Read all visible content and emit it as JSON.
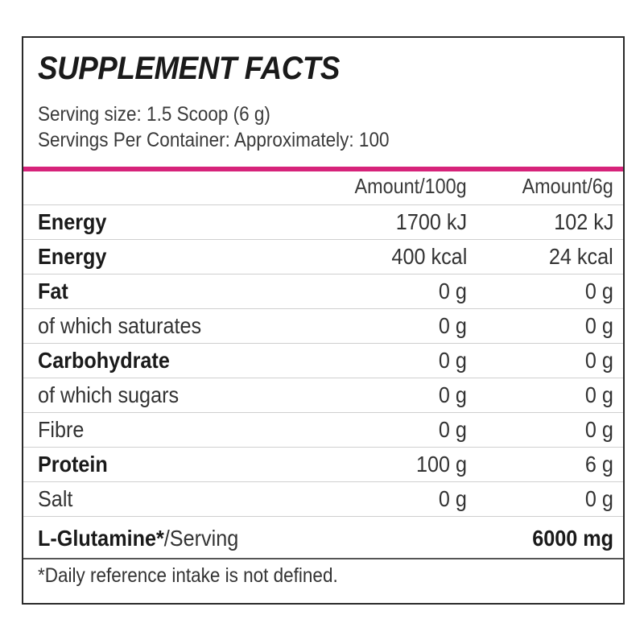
{
  "label": {
    "title": "SUPPLEMENT FACTS",
    "serving_size": "Serving size: 1.5 Scoop (6 g)",
    "servings_per_container": "Servings Per Container: Approximately: 100",
    "accent_color": "#d6237a",
    "columns": [
      "Amount/100g",
      "Amount/6g"
    ],
    "rows": [
      {
        "name": "Energy",
        "bold": true,
        "per100g": "1700 kJ",
        "per_serving": "102 kJ"
      },
      {
        "name": "Energy",
        "bold": true,
        "per100g": "400 kcal",
        "per_serving": "24 kcal"
      },
      {
        "name": "Fat",
        "bold": true,
        "per100g": "0 g",
        "per_serving": "0 g"
      },
      {
        "name": "of which saturates",
        "bold": false,
        "per100g": "0 g",
        "per_serving": "0 g"
      },
      {
        "name": "Carbohydrate",
        "bold": true,
        "per100g": "0 g",
        "per_serving": "0 g"
      },
      {
        "name": "of which sugars",
        "bold": false,
        "per100g": "0 g",
        "per_serving": "0 g"
      },
      {
        "name": "Fibre",
        "bold": false,
        "per100g": "0 g",
        "per_serving": "0 g"
      },
      {
        "name": "Protein",
        "bold": true,
        "per100g": "100 g",
        "per_serving": "6 g"
      },
      {
        "name": "Salt",
        "bold": false,
        "per100g": "0 g",
        "per_serving": "0 g"
      }
    ],
    "glutamine": {
      "name": "L-Glutamine*",
      "suffix": "/Serving",
      "amount": "6000 mg"
    },
    "footnote": "*Daily reference intake is not defined."
  }
}
